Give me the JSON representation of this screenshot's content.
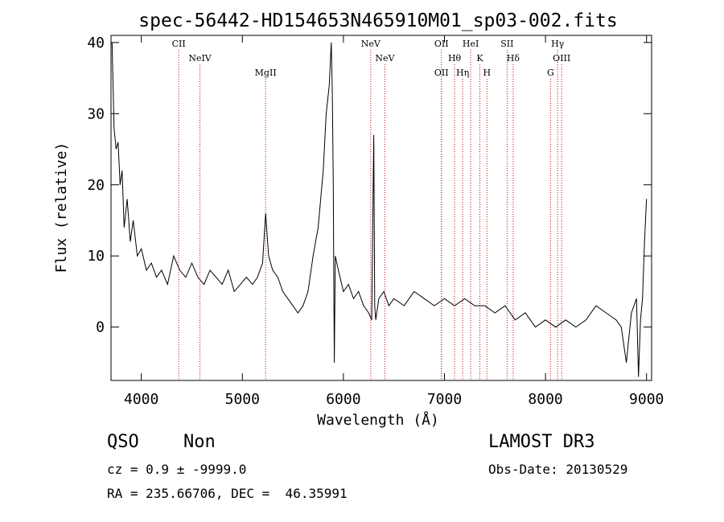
{
  "chart_data": {
    "type": "line",
    "title": "spec-56442-HD154653N465910M01_sp03-002.fits",
    "xlabel": "Wavelength (Å)",
    "ylabel": "Flux (relative)",
    "xlim": [
      3700,
      9050
    ],
    "ylim": [
      -7.5,
      41
    ],
    "xticks": [
      4000,
      5000,
      6000,
      7000,
      8000,
      9000
    ],
    "yticks": [
      0,
      10,
      20,
      30,
      40
    ],
    "grid": false,
    "line_color": "#000000",
    "marker_color": "#cc0000",
    "series": [
      {
        "x": [
          3710,
          3730,
          3750,
          3770,
          3790,
          3810,
          3830,
          3860,
          3890,
          3920,
          3960,
          4000,
          4050,
          4100,
          4150,
          4200,
          4260,
          4320,
          4380,
          4440,
          4500,
          4560,
          4620,
          4680,
          4740,
          4800,
          4860,
          4920,
          4980,
          5040,
          5100,
          5150,
          5200,
          5230,
          5260,
          5300,
          5350,
          5400,
          5450,
          5500,
          5550,
          5600,
          5650,
          5700,
          5750,
          5800,
          5830,
          5860,
          5880,
          5890,
          5900,
          5905,
          5910,
          5920,
          5950,
          6000,
          6050,
          6100,
          6150,
          6200,
          6250,
          6280,
          6300,
          6310,
          6320,
          6350,
          6400,
          6450,
          6500,
          6600,
          6700,
          6800,
          6900,
          7000,
          7100,
          7200,
          7300,
          7400,
          7500,
          7600,
          7700,
          7800,
          7900,
          8000,
          8100,
          8200,
          8300,
          8400,
          8500,
          8600,
          8700,
          8750,
          8800,
          8850,
          8900,
          8920,
          8940,
          8960,
          8980,
          9000
        ],
        "y": [
          40,
          28,
          25,
          26,
          20,
          22,
          14,
          18,
          12,
          15,
          10,
          11,
          8,
          9,
          7,
          8,
          6,
          10,
          8,
          7,
          9,
          7,
          6,
          8,
          7,
          6,
          8,
          5,
          6,
          7,
          6,
          7,
          9,
          16,
          10,
          8,
          7,
          5,
          4,
          3,
          2,
          3,
          5,
          10,
          14,
          22,
          30,
          34,
          40,
          33,
          20,
          5,
          -5,
          10,
          8,
          5,
          6,
          4,
          5,
          3,
          2,
          1,
          27,
          3,
          1,
          4,
          5,
          3,
          4,
          3,
          5,
          4,
          3,
          4,
          3,
          4,
          3,
          3,
          2,
          3,
          1,
          2,
          0,
          1,
          0,
          1,
          0,
          1,
          3,
          2,
          1,
          0,
          -5,
          2,
          4,
          -7,
          1,
          4,
          12,
          18
        ]
      }
    ],
    "lines_top": [
      {
        "label": "CII",
        "x": 4370
      },
      {
        "label": "NeIV",
        "x": 4580
      },
      {
        "label": "MgII",
        "x": 5230
      },
      {
        "label": "NeV",
        "x": 6270
      },
      {
        "label": "NeV",
        "x": 6410
      },
      {
        "label": "OII",
        "x": 6970
      },
      {
        "label": "OII",
        "x": 6970
      },
      {
        "label": "Hθ",
        "x": 7100
      },
      {
        "label": "Hη",
        "x": 7180
      },
      {
        "label": "HeI",
        "x": 7260
      },
      {
        "label": "K",
        "x": 7350
      },
      {
        "label": "H",
        "x": 7420
      },
      {
        "label": "SII",
        "x": 7620
      },
      {
        "label": "Hδ",
        "x": 7680
      },
      {
        "label": "G",
        "x": 8050
      },
      {
        "label": "Hγ",
        "x": 8120
      },
      {
        "label": "OIII",
        "x": 8160
      }
    ]
  },
  "info": {
    "class": "QSO",
    "subclass": "Non",
    "survey": "LAMOST DR3",
    "cz": "cz = 0.9 ± -9999.0",
    "obs_date": "Obs-Date: 20130529",
    "radec": "RA = 235.66706, DEC =  46.35991"
  }
}
